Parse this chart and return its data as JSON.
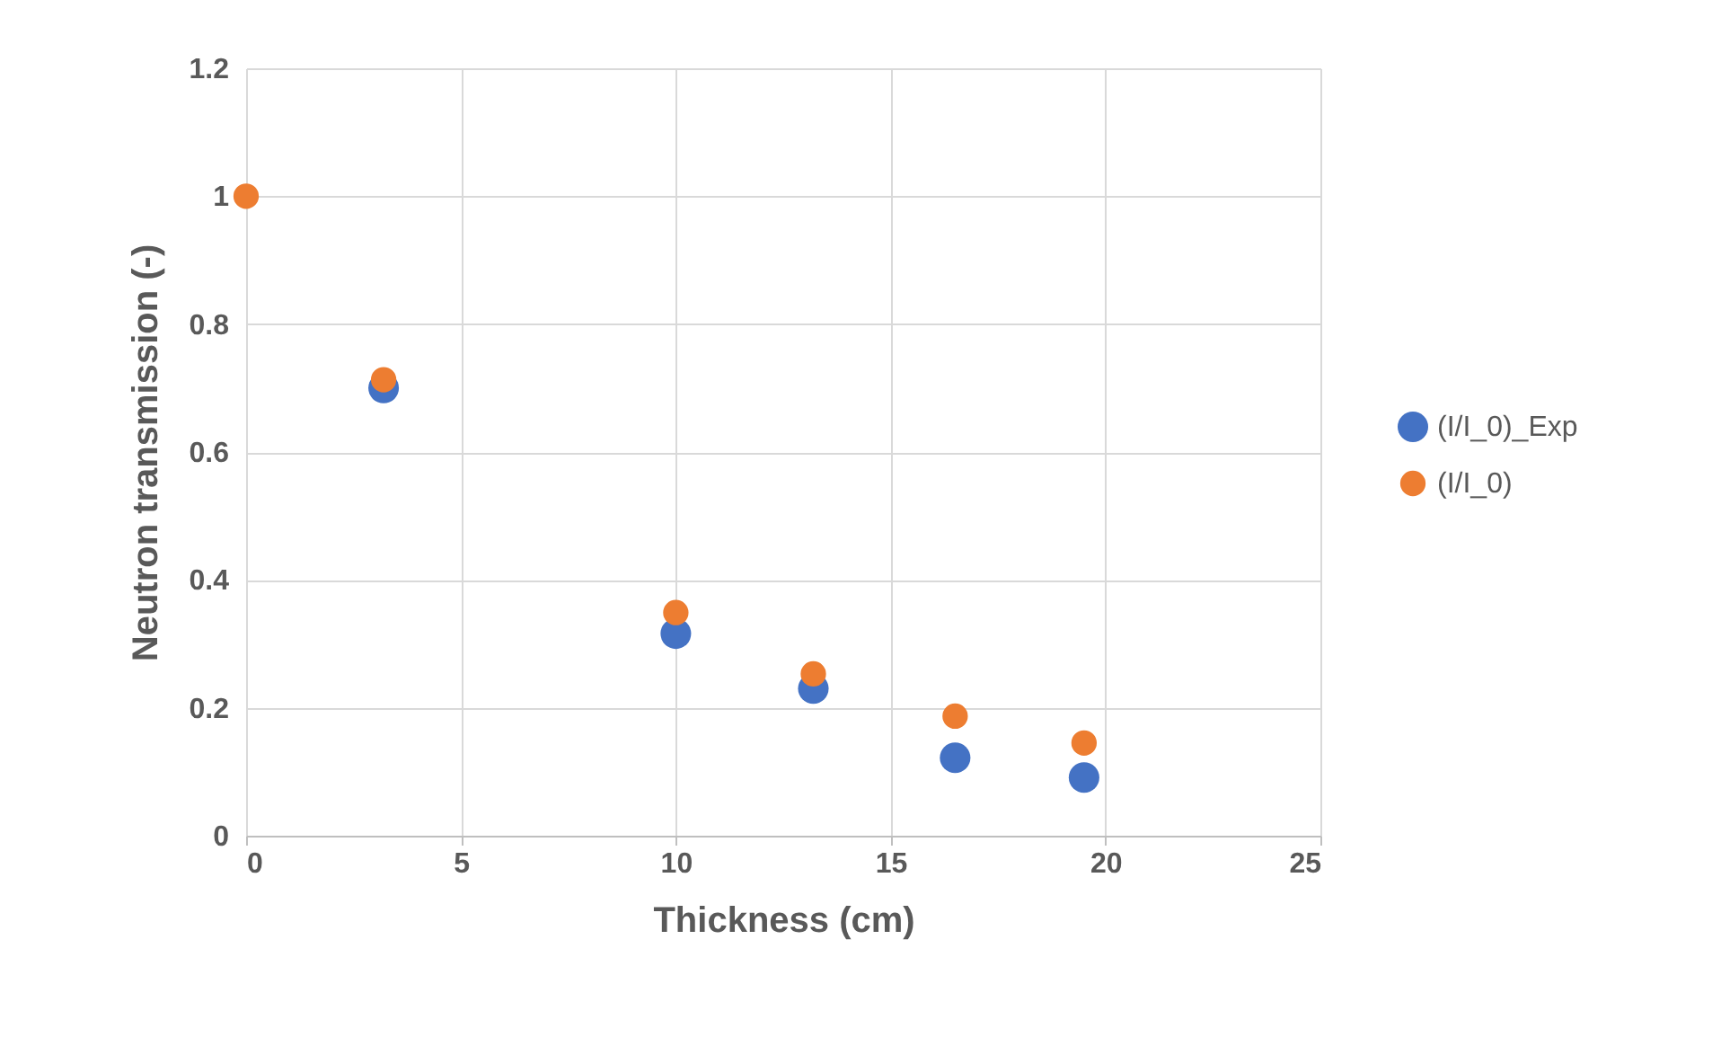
{
  "chart_data": {
    "type": "scatter",
    "xlabel": "Thickness (cm)",
    "ylabel": "Neutron transmission (-)",
    "x": [
      0,
      3.2,
      10,
      13.2,
      16.5,
      19.5
    ],
    "series": [
      {
        "name": "(I/I_0)_Exp",
        "color": "#4472c4",
        "values": [
          null,
          0.7,
          0.316,
          0.23,
          0.122,
          0.091
        ]
      },
      {
        "name": "(I/I_0)",
        "color": "#ed7d31",
        "values": [
          1,
          0.713,
          0.349,
          0.253,
          0.187,
          0.145
        ]
      }
    ],
    "xlim": [
      0,
      25
    ],
    "xticks": [
      0,
      5,
      10,
      15,
      20,
      25
    ],
    "ylim": [
      0,
      1.2
    ],
    "yticks": [
      0,
      0.2,
      0.4,
      0.6,
      0.8,
      1,
      1.2
    ],
    "grid": true,
    "legend": "right",
    "marker": "circle"
  }
}
